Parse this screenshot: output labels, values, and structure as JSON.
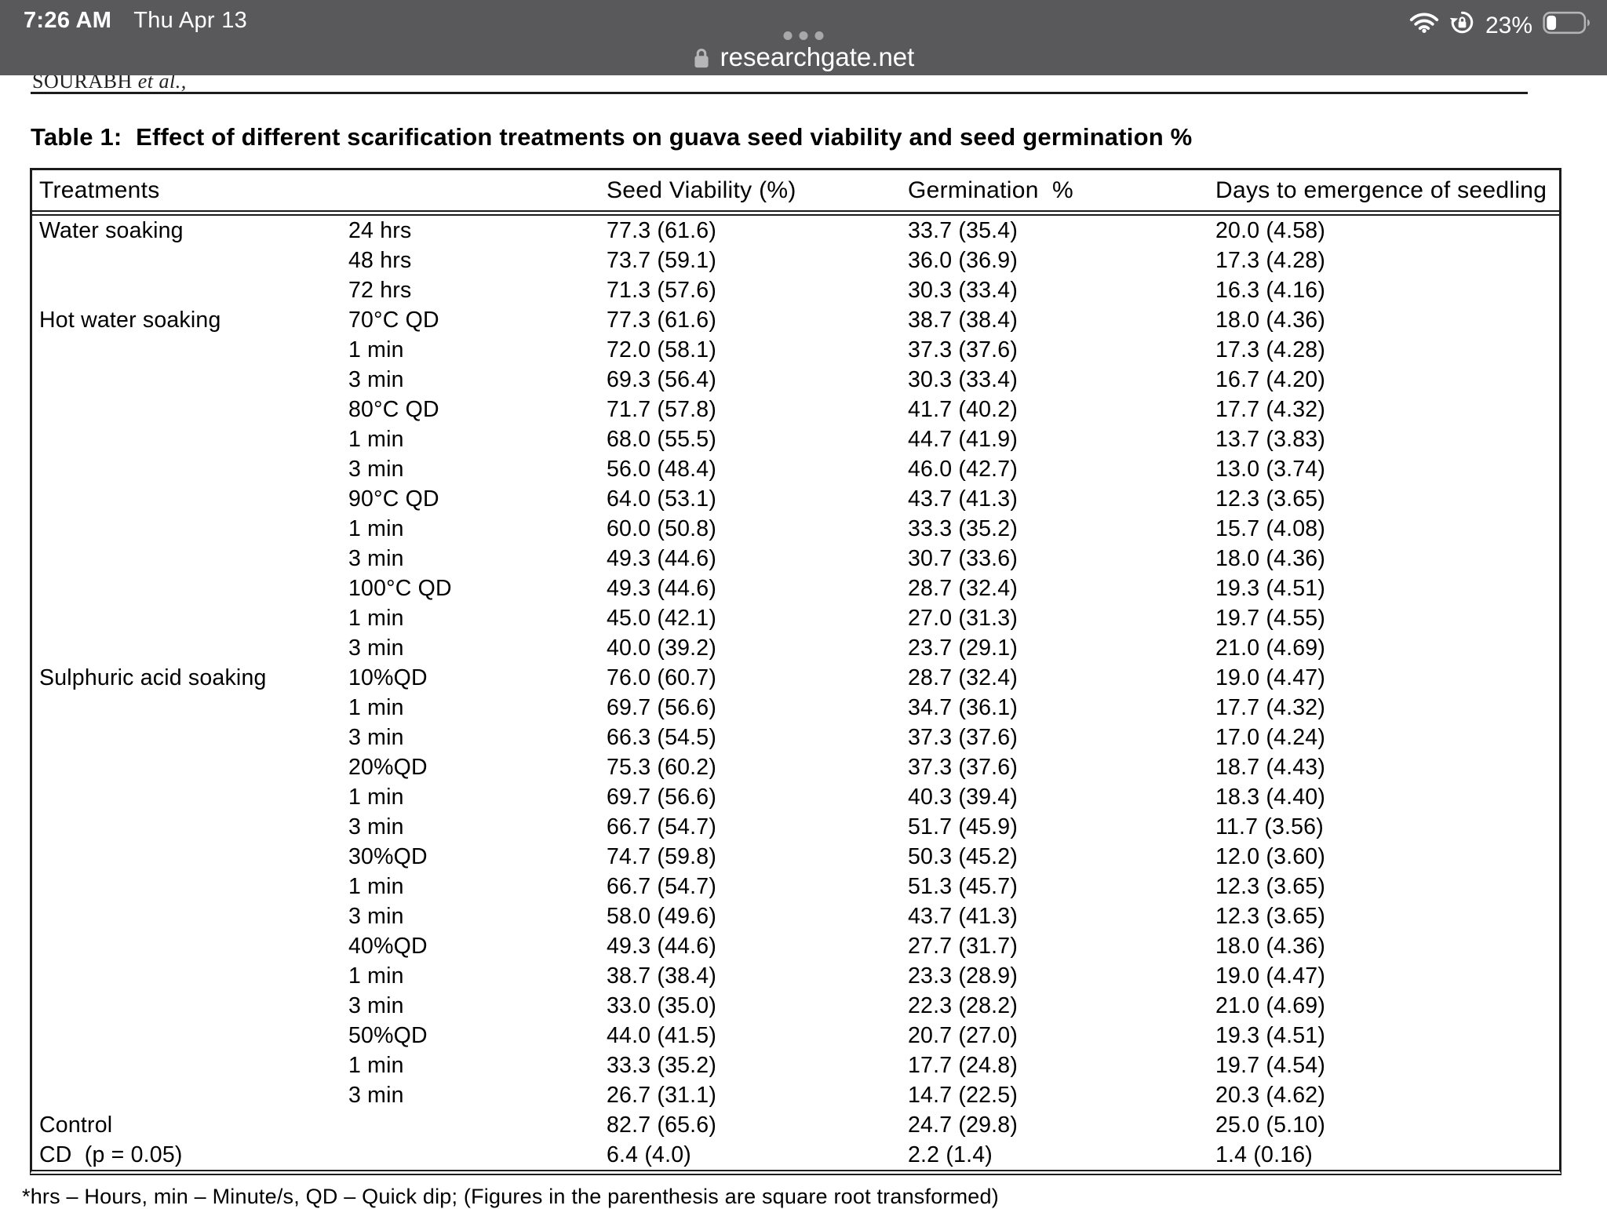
{
  "status_bar": {
    "time": "7:26 AM",
    "date": "Thu Apr 13",
    "battery_percent": "23%",
    "wifi_icon": "wifi-icon",
    "orientation_lock_icon": "orientation-lock-icon",
    "battery_icon": "battery-icon",
    "multitask_icon": "ellipsis-dots-icon"
  },
  "browser": {
    "url": "researchgate.net",
    "lock_icon": "padlock-icon"
  },
  "document": {
    "running_head_authors": "SOURABH",
    "running_head_etal": "et al.,",
    "title": "Table 1:  Effect of different scarification treatments on guava seed viability and seed germination %",
    "footnote": "*hrs – Hours, min – Minute/s, QD – Quick dip; (Figures in the parenthesis are square root transformed)"
  },
  "table": {
    "headers": {
      "treatments": "Treatments",
      "sub": "",
      "seed_viability": "Seed Viability (%)",
      "germination": "Germination  %",
      "days": "Days to emergence of seedling"
    },
    "rows": [
      {
        "treatment": "Water soaking",
        "sub": "24 hrs",
        "viability": "77.3 (61.6)",
        "germination": "33.7 (35.4)",
        "days": "20.0 (4.58)"
      },
      {
        "treatment": "",
        "sub": "48 hrs",
        "viability": "73.7 (59.1)",
        "germination": "36.0 (36.9)",
        "days": "17.3 (4.28)"
      },
      {
        "treatment": "",
        "sub": "72 hrs",
        "viability": "71.3 (57.6)",
        "germination": "30.3 (33.4)",
        "days": "16.3 (4.16)"
      },
      {
        "treatment": "Hot water soaking",
        "sub": "70°C QD",
        "viability": "77.3 (61.6)",
        "germination": "38.7 (38.4)",
        "days": "18.0 (4.36)"
      },
      {
        "treatment": "",
        "sub": "1 min",
        "viability": "72.0 (58.1)",
        "germination": "37.3 (37.6)",
        "days": "17.3 (4.28)"
      },
      {
        "treatment": "",
        "sub": "3 min",
        "viability": "69.3 (56.4)",
        "germination": "30.3 (33.4)",
        "days": "16.7 (4.20)"
      },
      {
        "treatment": "",
        "sub": "80°C QD",
        "viability": "71.7 (57.8)",
        "germination": "41.7 (40.2)",
        "days": "17.7 (4.32)"
      },
      {
        "treatment": "",
        "sub": "1 min",
        "viability": "68.0 (55.5)",
        "germination": "44.7 (41.9)",
        "days": "13.7 (3.83)"
      },
      {
        "treatment": "",
        "sub": "3 min",
        "viability": "56.0 (48.4)",
        "germination": "46.0 (42.7)",
        "days": "13.0 (3.74)"
      },
      {
        "treatment": "",
        "sub": "90°C QD",
        "viability": "64.0 (53.1)",
        "germination": "43.7 (41.3)",
        "days": "12.3 (3.65)"
      },
      {
        "treatment": "",
        "sub": "1 min",
        "viability": "60.0 (50.8)",
        "germination": "33.3 (35.2)",
        "days": "15.7 (4.08)"
      },
      {
        "treatment": "",
        "sub": "3 min",
        "viability": "49.3 (44.6)",
        "germination": "30.7 (33.6)",
        "days": "18.0 (4.36)"
      },
      {
        "treatment": "",
        "sub": "100°C QD",
        "viability": "49.3 (44.6)",
        "germination": "28.7 (32.4)",
        "days": "19.3 (4.51)"
      },
      {
        "treatment": "",
        "sub": "1 min",
        "viability": "45.0 (42.1)",
        "germination": "27.0 (31.3)",
        "days": "19.7 (4.55)"
      },
      {
        "treatment": "",
        "sub": "3 min",
        "viability": "40.0 (39.2)",
        "germination": "23.7 (29.1)",
        "days": "21.0 (4.69)"
      },
      {
        "treatment": "Sulphuric acid soaking",
        "sub": "10%QD",
        "viability": "76.0 (60.7)",
        "germination": "28.7 (32.4)",
        "days": "19.0 (4.47)"
      },
      {
        "treatment": "",
        "sub": "1 min",
        "viability": "69.7 (56.6)",
        "germination": "34.7 (36.1)",
        "days": "17.7 (4.32)"
      },
      {
        "treatment": "",
        "sub": "3 min",
        "viability": "66.3 (54.5)",
        "germination": "37.3 (37.6)",
        "days": "17.0 (4.24)"
      },
      {
        "treatment": "",
        "sub": "20%QD",
        "viability": "75.3 (60.2)",
        "germination": "37.3 (37.6)",
        "days": "18.7 (4.43)"
      },
      {
        "treatment": "",
        "sub": "1 min",
        "viability": "69.7 (56.6)",
        "germination": "40.3 (39.4)",
        "days": "18.3 (4.40)"
      },
      {
        "treatment": "",
        "sub": "3 min",
        "viability": "66.7 (54.7)",
        "germination": "51.7 (45.9)",
        "days": "11.7 (3.56)"
      },
      {
        "treatment": "",
        "sub": "30%QD",
        "viability": "74.7 (59.8)",
        "germination": "50.3 (45.2)",
        "days": "12.0 (3.60)"
      },
      {
        "treatment": "",
        "sub": "1 min",
        "viability": "66.7 (54.7)",
        "germination": "51.3 (45.7)",
        "days": "12.3 (3.65)"
      },
      {
        "treatment": "",
        "sub": "3 min",
        "viability": "58.0 (49.6)",
        "germination": "43.7 (41.3)",
        "days": "12.3 (3.65)"
      },
      {
        "treatment": "",
        "sub": "40%QD",
        "viability": "49.3 (44.6)",
        "germination": "27.7 (31.7)",
        "days": "18.0 (4.36)"
      },
      {
        "treatment": "",
        "sub": "1 min",
        "viability": "38.7 (38.4)",
        "germination": "23.3 (28.9)",
        "days": "19.0 (4.47)"
      },
      {
        "treatment": "",
        "sub": "3 min",
        "viability": "33.0 (35.0)",
        "germination": "22.3 (28.2)",
        "days": "21.0 (4.69)"
      },
      {
        "treatment": "",
        "sub": "50%QD",
        "viability": "44.0 (41.5)",
        "germination": "20.7 (27.0)",
        "days": "19.3 (4.51)"
      },
      {
        "treatment": "",
        "sub": "1 min",
        "viability": "33.3 (35.2)",
        "germination": "17.7 (24.8)",
        "days": "19.7 (4.54)"
      },
      {
        "treatment": "",
        "sub": "3 min",
        "viability": "26.7 (31.1)",
        "germination": "14.7 (22.5)",
        "days": "20.3 (4.62)"
      },
      {
        "treatment": "Control",
        "sub": "",
        "viability": "82.7 (65.6)",
        "germination": "24.7 (29.8)",
        "days": "25.0 (5.10)"
      },
      {
        "treatment": "CD  (p = 0.05)",
        "sub": "",
        "viability": "6.4 (4.0)",
        "germination": "2.2 (1.4)",
        "days": "1.4 (0.16)"
      }
    ]
  }
}
